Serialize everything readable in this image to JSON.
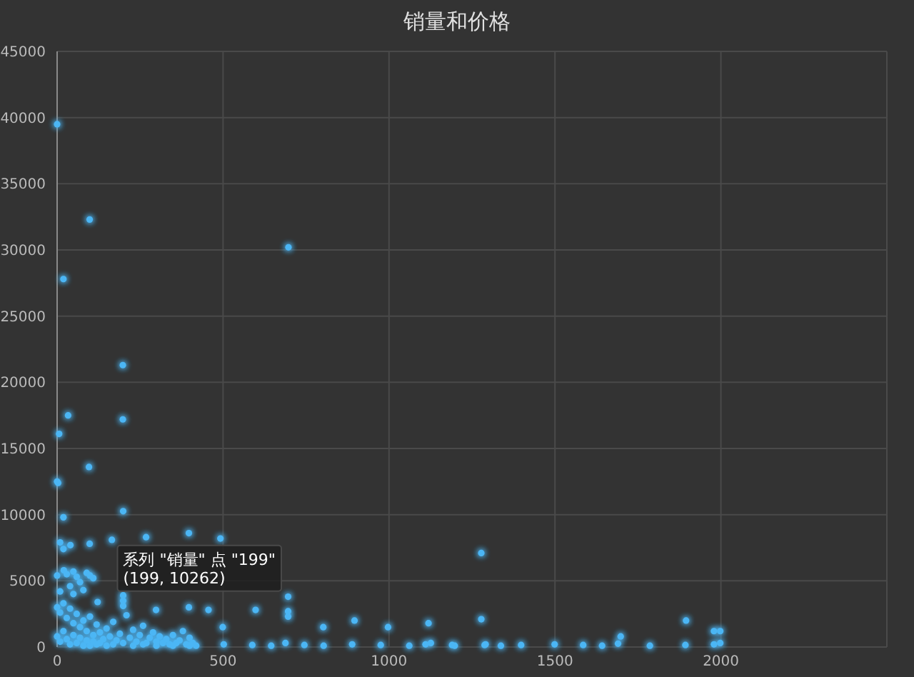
{
  "chart_data": {
    "type": "scatter",
    "title": "销量和价格",
    "color": "#4cb6f5",
    "marker": "circle",
    "grid": true,
    "xlim": [
      0,
      2500
    ],
    "xticks": [
      0,
      500,
      1000,
      1500,
      2000,
      {
        "value": 2500,
        "label": null
      }
    ],
    "ylim": [
      0,
      45000
    ],
    "yticks": [
      0,
      5000,
      10000,
      15000,
      20000,
      25000,
      30000,
      35000,
      40000,
      45000
    ],
    "x": [
      0,
      98,
      697,
      19,
      198,
      33,
      198,
      6,
      96,
      0,
      3,
      199,
      19,
      9,
      19,
      40,
      98,
      165,
      268,
      397,
      492,
      1278,
      0,
      20,
      29,
      49,
      59,
      69,
      89,
      99,
      109,
      39,
      9,
      49,
      79,
      122,
      199,
      199,
      199,
      696,
      696,
      696,
      298,
      397,
      456,
      598,
      802,
      896,
      997,
      1119,
      499,
      1278,
      1895,
      1979,
      1998,
      1698,
      0,
      9,
      19,
      29,
      39,
      49,
      59,
      69,
      79,
      89,
      99,
      109,
      119,
      129,
      139,
      149,
      159,
      169,
      179,
      189,
      209,
      219,
      229,
      239,
      249,
      259,
      269,
      279,
      289,
      299,
      309,
      319,
      329,
      339,
      349,
      359,
      369,
      379,
      389,
      399,
      409,
      419,
      0,
      9,
      19,
      29,
      39,
      49,
      59,
      69,
      79,
      89,
      99,
      109,
      119,
      129,
      149,
      169,
      199,
      229,
      259,
      299,
      349,
      399,
      502,
      588,
      645,
      688,
      745,
      803,
      889,
      975,
      1061,
      1110,
      1126,
      1190,
      1198,
      1291,
      1337,
      1398,
      1499,
      1585,
      1642,
      1690,
      1786,
      1893,
      1979,
      1998,
      1288
    ],
    "values": [
      39500,
      32300,
      30200,
      27800,
      21300,
      17500,
      17200,
      16100,
      13600,
      12500,
      12400,
      10262,
      9800,
      7900,
      7400,
      7700,
      7800,
      8100,
      8300,
      8600,
      8200,
      7100,
      5400,
      5800,
      5500,
      5700,
      5300,
      4900,
      5600,
      5400,
      5200,
      4600,
      4200,
      4000,
      4300,
      3400,
      3900,
      3500,
      3100,
      3800,
      2700,
      2300,
      2800,
      3000,
      2800,
      2800,
      1500,
      2000,
      1500,
      1800,
      1500,
      2100,
      2000,
      1200,
      1200,
      800,
      3000,
      2600,
      3300,
      2200,
      2900,
      1800,
      2500,
      1500,
      2000,
      1200,
      2300,
      900,
      1700,
      1100,
      600,
      1400,
      800,
      1900,
      500,
      1000,
      2400,
      700,
      1300,
      400,
      900,
      1600,
      300,
      700,
      1100,
      400,
      800,
      300,
      600,
      200,
      900,
      300,
      500,
      1200,
      200,
      700,
      300,
      100,
      800,
      400,
      1200,
      600,
      200,
      900,
      300,
      700,
      100,
      500,
      100,
      400,
      200,
      300,
      100,
      200,
      300,
      100,
      200,
      100,
      100,
      100,
      200,
      150,
      100,
      300,
      150,
      100,
      200,
      150,
      100,
      200,
      300,
      150,
      100,
      200,
      100,
      150,
      200,
      150,
      100,
      250,
      100,
      150,
      200,
      300,
      150
    ],
    "annotations": [
      {
        "text": "系列 \"销量\" 点 \"199\"\n(199, 10262)",
        "x": 199,
        "y": 10262
      }
    ]
  }
}
